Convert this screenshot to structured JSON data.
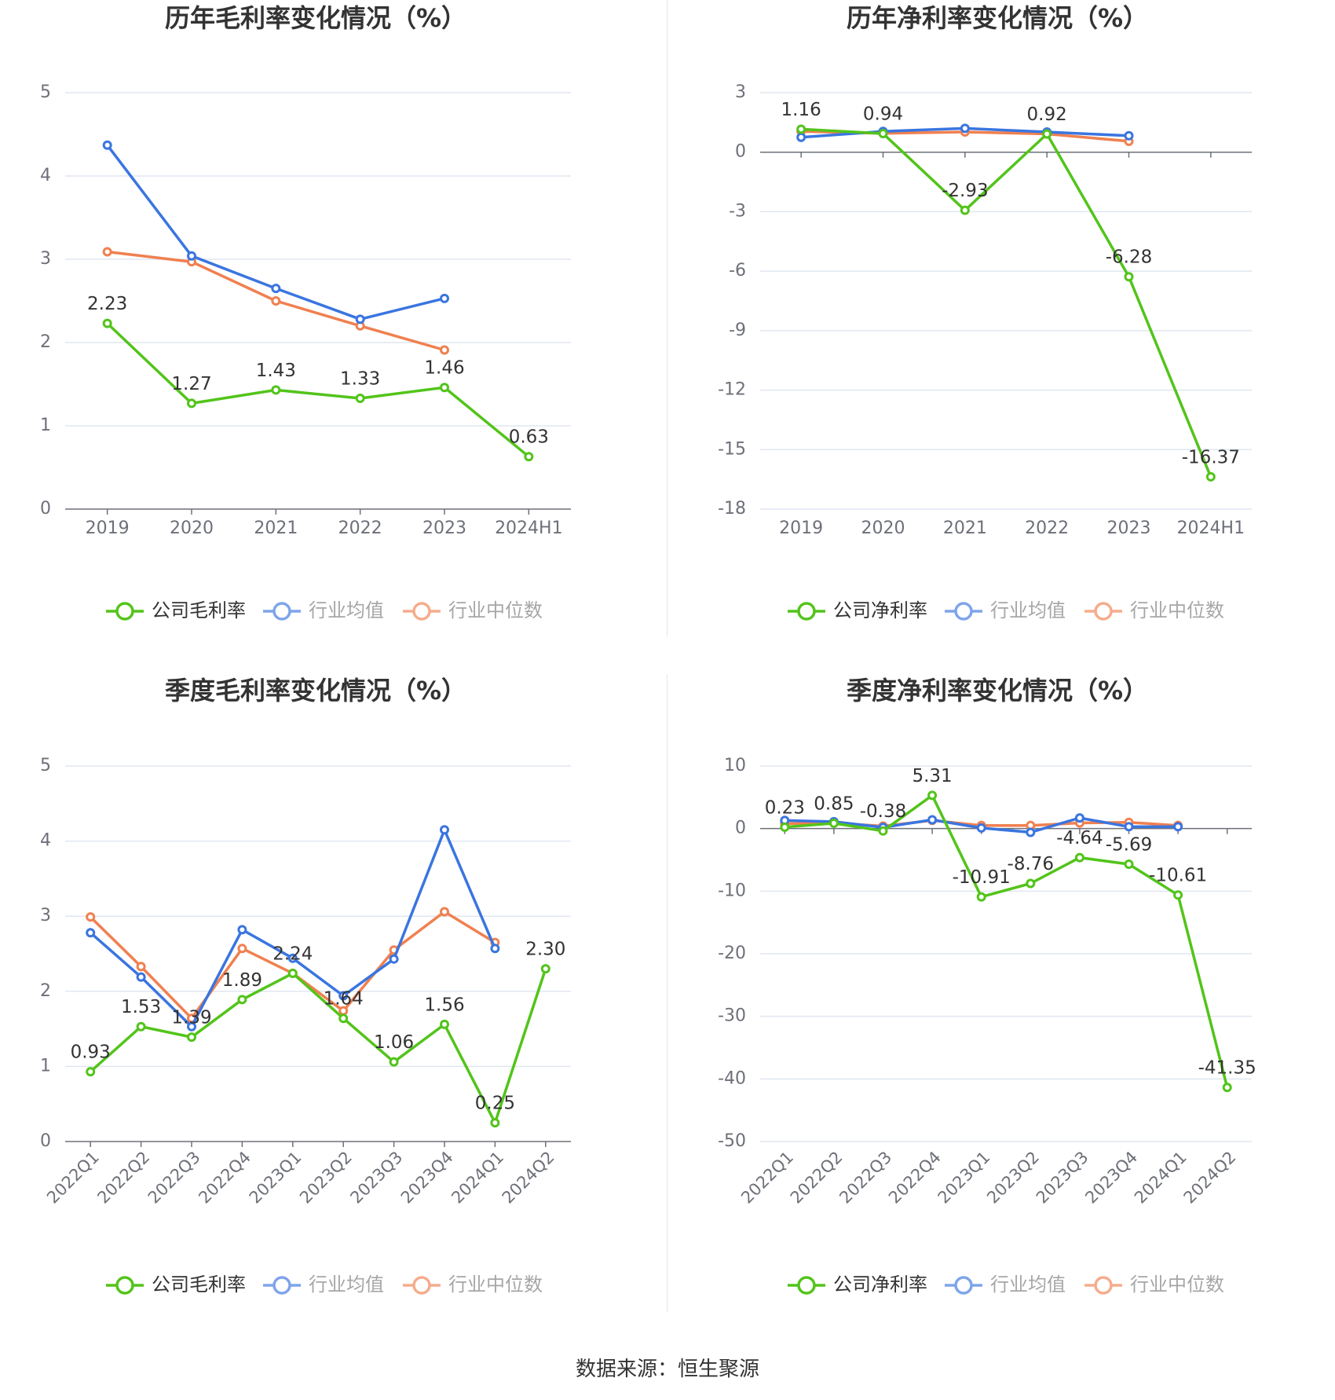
{
  "colors": {
    "company": "#52c41a",
    "avg": "#3a75e0",
    "median": "#f08050",
    "grid": "#e0e6f1",
    "axis": "#6e7079",
    "text": "#333333"
  },
  "source": "数据来源：恒生聚源",
  "chart_data": [
    {
      "type": "line",
      "title": "历年毛利率变化情况（%）",
      "categories": [
        "2019",
        "2020",
        "2021",
        "2022",
        "2023",
        "2024H1"
      ],
      "ylim": [
        0,
        5
      ],
      "yticks": [
        0,
        1,
        2,
        3,
        4,
        5
      ],
      "grid": true,
      "legend_position": "bottom",
      "series": [
        {
          "name": "公司毛利率",
          "key": "company",
          "values": [
            2.23,
            1.27,
            1.43,
            1.33,
            1.46,
            0.63
          ],
          "labels": [
            "2.23",
            "1.27",
            "1.43",
            "1.33",
            "1.46",
            "0.63"
          ]
        },
        {
          "name": "行业均值",
          "key": "avg",
          "values": [
            4.37,
            3.04,
            2.65,
            2.28,
            2.53,
            null
          ]
        },
        {
          "name": "行业中位数",
          "key": "median",
          "values": [
            3.09,
            2.97,
            2.5,
            2.2,
            1.91,
            null
          ]
        }
      ]
    },
    {
      "type": "line",
      "title": "历年净利率变化情况（%）",
      "categories": [
        "2019",
        "2020",
        "2021",
        "2022",
        "2023",
        "2024H1"
      ],
      "ylim": [
        -18,
        3
      ],
      "yticks": [
        -18,
        -15,
        -12,
        -9,
        -6,
        -3,
        0,
        3
      ],
      "grid": true,
      "legend_position": "bottom",
      "series": [
        {
          "name": "公司净利率",
          "key": "company",
          "values": [
            1.16,
            0.94,
            -2.93,
            0.92,
            -6.28,
            -16.37
          ],
          "labels": [
            "1.16",
            "0.94",
            "-2.93",
            "0.92",
            "-6.28",
            "-16.37"
          ]
        },
        {
          "name": "行业均值",
          "key": "avg",
          "values": [
            0.75,
            1.05,
            1.2,
            1.02,
            0.83,
            null
          ]
        },
        {
          "name": "行业中位数",
          "key": "median",
          "values": [
            1.05,
            0.95,
            1.02,
            0.92,
            0.55,
            null
          ]
        }
      ]
    },
    {
      "type": "line",
      "title": "季度毛利率变化情况（%）",
      "categories": [
        "2022Q1",
        "2022Q2",
        "2022Q3",
        "2022Q4",
        "2023Q1",
        "2023Q2",
        "2023Q3",
        "2023Q4",
        "2024Q1",
        "2024Q2"
      ],
      "ylim": [
        0,
        5
      ],
      "yticks": [
        0,
        1,
        2,
        3,
        4,
        5
      ],
      "grid": true,
      "legend_position": "bottom",
      "series": [
        {
          "name": "公司毛利率",
          "key": "company",
          "values": [
            0.93,
            1.53,
            1.39,
            1.89,
            2.24,
            1.64,
            1.06,
            1.56,
            0.25,
            2.3
          ],
          "labels": [
            "0.93",
            "1.53",
            "1.39",
            "1.89",
            "2.24",
            "1.64",
            "1.06",
            "1.56",
            "0.25",
            "2.30"
          ]
        },
        {
          "name": "行业均值",
          "key": "avg",
          "values": [
            2.78,
            2.19,
            1.53,
            2.82,
            2.44,
            1.94,
            2.43,
            4.15,
            2.57,
            null
          ]
        },
        {
          "name": "行业中位数",
          "key": "median",
          "values": [
            2.99,
            2.33,
            1.64,
            2.57,
            2.24,
            1.74,
            2.55,
            3.06,
            2.65,
            null
          ]
        }
      ]
    },
    {
      "type": "line",
      "title": "季度净利率变化情况（%）",
      "categories": [
        "2022Q1",
        "2022Q2",
        "2022Q3",
        "2022Q4",
        "2023Q1",
        "2023Q2",
        "2023Q3",
        "2023Q4",
        "2024Q1",
        "2024Q2"
      ],
      "ylim": [
        -50,
        10
      ],
      "yticks": [
        -50,
        -40,
        -30,
        -20,
        -10,
        0,
        10
      ],
      "grid": true,
      "legend_position": "bottom",
      "series": [
        {
          "name": "公司净利率",
          "key": "company",
          "values": [
            0.23,
            0.85,
            -0.38,
            5.31,
            -10.91,
            -8.76,
            -4.64,
            -5.69,
            -10.61,
            -41.35
          ],
          "labels": [
            "0.23",
            "0.85",
            "-0.38",
            "5.31",
            "-10.91",
            "-8.76",
            "-4.64",
            "-5.69",
            "-10.61",
            "-41.35"
          ]
        },
        {
          "name": "行业均值",
          "key": "avg",
          "values": [
            1.3,
            1.1,
            0.2,
            1.4,
            0.1,
            -0.6,
            1.7,
            0.3,
            0.3,
            null
          ]
        },
        {
          "name": "行业中位数",
          "key": "median",
          "values": [
            0.8,
            0.9,
            0.4,
            1.3,
            0.5,
            0.5,
            0.9,
            1.0,
            0.5,
            null
          ]
        }
      ]
    }
  ]
}
